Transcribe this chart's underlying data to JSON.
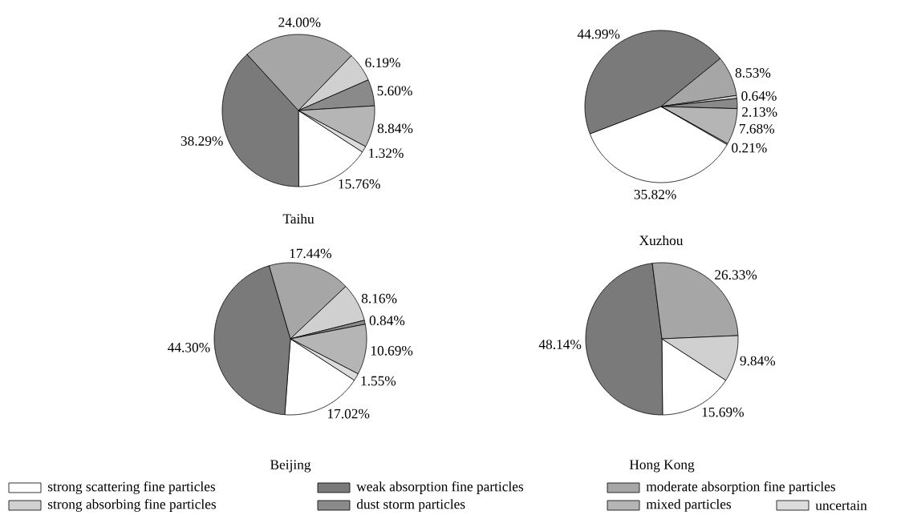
{
  "chart_data": [
    {
      "type": "pie",
      "title": "Taihu",
      "categories": [
        null,
        null,
        null,
        null,
        null,
        null,
        null
      ],
      "values": [
        15.76,
        38.29,
        24.0,
        6.19,
        5.6,
        8.84,
        1.32
      ],
      "value_labels": [
        "15.76%",
        "38.29%",
        "24.00%",
        "6.19%",
        "5.60%",
        "8.84%",
        "1.32%"
      ],
      "colors": [
        "#ffffff",
        "#7a7a7a",
        "#a6a6a6",
        "#d0d0d0",
        "#8a8a8a",
        "#b5b5b5",
        "#dcdcdc"
      ]
    },
    {
      "type": "pie",
      "title": "Xuzhou",
      "categories": [
        null,
        null,
        null,
        null,
        null,
        null,
        null
      ],
      "values": [
        35.82,
        44.99,
        8.53,
        0.64,
        2.13,
        7.68,
        0.21
      ],
      "value_labels": [
        "35.82%",
        "44.99%",
        "8.53%",
        "0.64%",
        "2.13%",
        "7.68%",
        "0.21%"
      ],
      "colors": [
        "#ffffff",
        "#7a7a7a",
        "#a6a6a6",
        "#d0d0d0",
        "#8a8a8a",
        "#b5b5b5",
        "#dcdcdc"
      ]
    },
    {
      "type": "pie",
      "title": "Beijing",
      "legend": "bottom",
      "categories": [
        "strong scattering fine particles",
        "weak absorption fine particles",
        "moderate absorption fine particles",
        "strong absorbing fine particles",
        "dust storm particles",
        "mixed particles",
        "uncertain"
      ],
      "values": [
        17.02,
        44.3,
        17.44,
        8.16,
        0.84,
        10.69,
        1.55
      ],
      "value_labels": [
        "17.02%",
        "44.30%",
        "17.44%",
        "8.16%",
        "0.84%",
        "10.69%",
        "1.55%"
      ],
      "colors": [
        "#ffffff",
        "#7a7a7a",
        "#a6a6a6",
        "#d0d0d0",
        "#8a8a8a",
        "#b5b5b5",
        "#dcdcdc"
      ]
    },
    {
      "type": "pie",
      "title": "Hong Kong",
      "categories": [
        null,
        null,
        null,
        null
      ],
      "values": [
        15.69,
        48.14,
        26.33,
        9.84
      ],
      "value_labels": [
        "15.69%",
        "48.14%",
        "26.33%",
        "9.84%"
      ],
      "colors": [
        "#ffffff",
        "#7a7a7a",
        "#a6a6a6",
        "#d0d0d0"
      ]
    }
  ]
}
